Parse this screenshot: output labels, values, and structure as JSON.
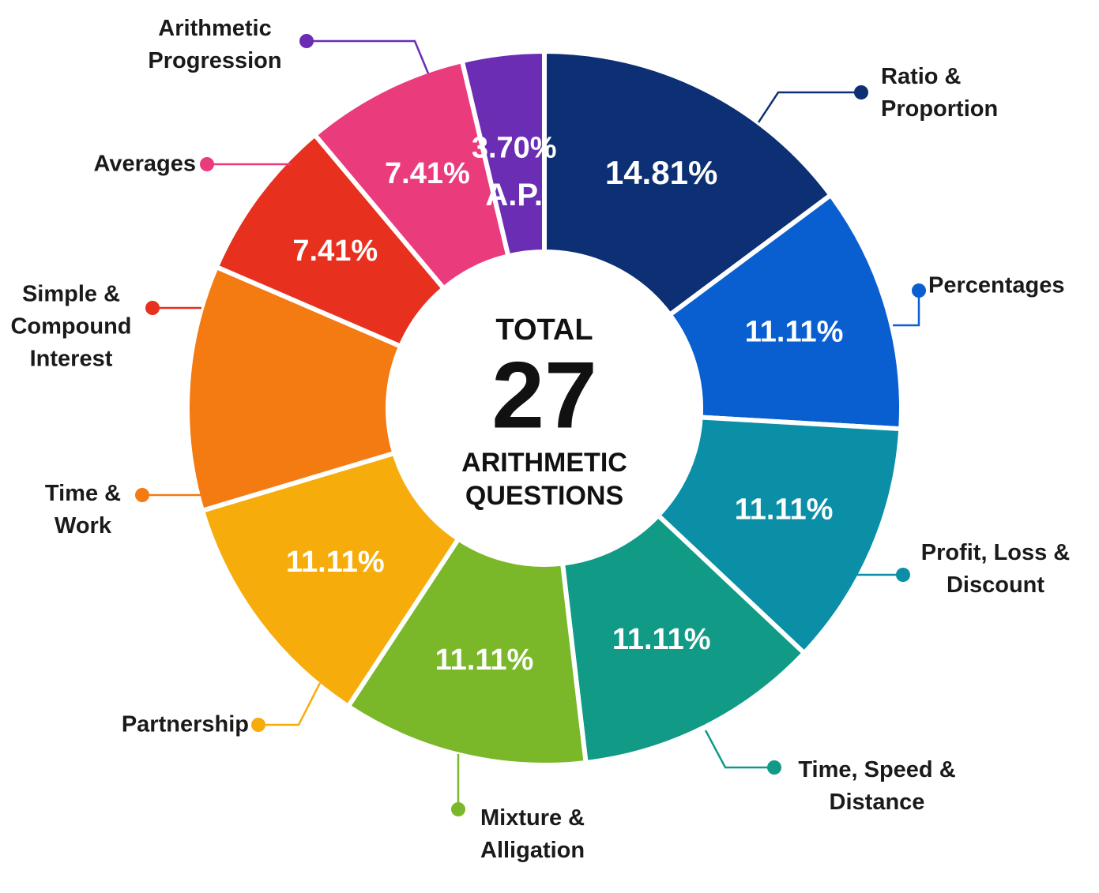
{
  "chart_data": {
    "type": "donut",
    "categories": [
      "Ratio & Proportion",
      "Percentages",
      "Profit, Loss & Discount",
      "Time, Speed & Distance",
      "Mixture & Alligation",
      "Partnership",
      "Time & Work",
      "Simple & Compound Interest",
      "Averages",
      "Arithmetic Progression"
    ],
    "values": [
      14.81,
      11.11,
      11.11,
      11.11,
      11.11,
      11.11,
      11.11,
      7.41,
      7.41,
      3.7
    ],
    "value_labels": [
      "14.81%",
      "11.11%",
      "11.11%",
      "11.11%",
      "11.11%",
      "11.11%",
      null,
      "7.41%",
      "7.41%",
      "3.70%"
    ],
    "colors": [
      "#0d2f73",
      "#0a5fd0",
      "#0a8fa6",
      "#119a86",
      "#7ab82a",
      "#f6ad0c",
      "#f47a12",
      "#e8301e",
      "#ea3b7d",
      "#6a2db3"
    ],
    "slice_annotation": "A.P.",
    "center_title": "TOTAL",
    "center_value": "27",
    "center_subtitle": "ARITHMETIC QUESTIONS"
  }
}
